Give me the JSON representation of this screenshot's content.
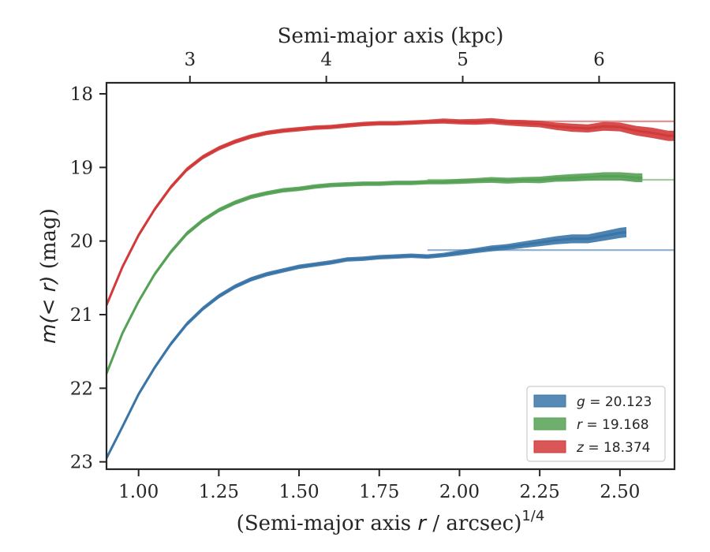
{
  "chart_data": {
    "type": "line",
    "xlabel": "(Semi-major axis r / arcsec)^1/4",
    "xlabel_parts": {
      "prefix": "(Semi-major axis ",
      "var": "r",
      "mid": " / arcsec)",
      "sup": "1/4"
    },
    "ylabel": "m(< r) (mag)",
    "ylabel_parts": {
      "math": "m(< r)",
      "unit": " (mag)"
    },
    "top_xlabel": "Semi-major axis (kpc)",
    "xlim": [
      0.9,
      2.67
    ],
    "ylim": [
      23.1,
      17.85
    ],
    "y_inverted": true,
    "xticks": [
      1.0,
      1.25,
      1.5,
      1.75,
      2.0,
      2.25,
      2.5
    ],
    "xtick_labels": [
      "1.00",
      "1.25",
      "1.50",
      "1.75",
      "2.00",
      "2.25",
      "2.50"
    ],
    "yticks": [
      18,
      19,
      20,
      21,
      22,
      23
    ],
    "ytick_labels": [
      "18",
      "19",
      "20",
      "21",
      "22",
      "23"
    ],
    "top_xticks": [
      3,
      4,
      5,
      6
    ],
    "top_xtick_labels": [
      "3",
      "4",
      "5",
      "6"
    ],
    "top_xtick_positions_bottom_units": [
      1.16,
      1.585,
      2.01,
      2.435
    ],
    "grid": false,
    "legend_position": "lower right",
    "series": [
      {
        "name": "g = 20.123",
        "legend_label": {
          "var": "g",
          "value": "20.123"
        },
        "color": "#3a75a8",
        "asymptote": 20.123,
        "x": [
          0.9,
          0.95,
          1.0,
          1.05,
          1.1,
          1.15,
          1.2,
          1.25,
          1.3,
          1.35,
          1.4,
          1.45,
          1.5,
          1.55,
          1.6,
          1.65,
          1.7,
          1.75,
          1.8,
          1.85,
          1.9,
          1.95,
          2.0,
          2.05,
          2.1,
          2.15,
          2.2,
          2.25,
          2.3,
          2.35,
          2.4,
          2.45,
          2.5,
          2.52
        ],
        "y": [
          22.95,
          22.52,
          22.08,
          21.72,
          21.4,
          21.13,
          20.92,
          20.75,
          20.62,
          20.52,
          20.45,
          20.4,
          20.35,
          20.32,
          20.29,
          20.25,
          20.24,
          20.22,
          20.21,
          20.2,
          20.21,
          20.19,
          20.16,
          20.13,
          20.1,
          20.08,
          20.05,
          20.02,
          19.99,
          19.97,
          19.97,
          19.93,
          19.89,
          19.88
        ],
        "band": [
          0.03,
          0.03,
          0.03,
          0.03,
          0.03,
          0.03,
          0.03,
          0.03,
          0.03,
          0.03,
          0.03,
          0.03,
          0.03,
          0.03,
          0.03,
          0.03,
          0.03,
          0.03,
          0.03,
          0.03,
          0.03,
          0.03,
          0.035,
          0.035,
          0.04,
          0.04,
          0.045,
          0.05,
          0.055,
          0.06,
          0.06,
          0.065,
          0.07,
          0.07
        ]
      },
      {
        "name": "r = 19.168",
        "legend_label": {
          "var": "r",
          "value": "19.168"
        },
        "color": "#55a155",
        "asymptote": 19.168,
        "x": [
          0.9,
          0.95,
          1.0,
          1.05,
          1.1,
          1.15,
          1.2,
          1.25,
          1.3,
          1.35,
          1.4,
          1.45,
          1.5,
          1.55,
          1.6,
          1.65,
          1.7,
          1.75,
          1.8,
          1.85,
          1.9,
          1.95,
          2.0,
          2.05,
          2.1,
          2.15,
          2.2,
          2.25,
          2.3,
          2.35,
          2.4,
          2.45,
          2.5,
          2.55,
          2.57
        ],
        "y": [
          21.8,
          21.25,
          20.82,
          20.45,
          20.15,
          19.9,
          19.72,
          19.58,
          19.48,
          19.4,
          19.35,
          19.31,
          19.29,
          19.26,
          19.24,
          19.23,
          19.22,
          19.22,
          19.21,
          19.21,
          19.2,
          19.2,
          19.19,
          19.18,
          19.17,
          19.18,
          19.17,
          19.17,
          19.15,
          19.14,
          19.13,
          19.12,
          19.12,
          19.14,
          19.14
        ],
        "band": [
          0.03,
          0.03,
          0.03,
          0.03,
          0.03,
          0.03,
          0.03,
          0.03,
          0.03,
          0.03,
          0.03,
          0.03,
          0.03,
          0.03,
          0.03,
          0.03,
          0.03,
          0.03,
          0.03,
          0.03,
          0.03,
          0.03,
          0.035,
          0.035,
          0.04,
          0.04,
          0.04,
          0.045,
          0.045,
          0.05,
          0.05,
          0.055,
          0.055,
          0.06,
          0.06
        ]
      },
      {
        "name": "z = 18.374",
        "legend_label": {
          "var": "z",
          "value": "18.374"
        },
        "color": "#d23a3a",
        "asymptote": 18.374,
        "x": [
          0.9,
          0.95,
          1.0,
          1.05,
          1.1,
          1.15,
          1.2,
          1.25,
          1.3,
          1.35,
          1.4,
          1.45,
          1.5,
          1.55,
          1.6,
          1.65,
          1.7,
          1.75,
          1.8,
          1.85,
          1.9,
          1.95,
          2.0,
          2.05,
          2.1,
          2.15,
          2.2,
          2.25,
          2.3,
          2.35,
          2.4,
          2.45,
          2.5,
          2.55,
          2.6,
          2.65,
          2.67
        ],
        "y": [
          20.87,
          20.35,
          19.92,
          19.57,
          19.27,
          19.03,
          18.86,
          18.74,
          18.65,
          18.58,
          18.53,
          18.5,
          18.48,
          18.46,
          18.45,
          18.43,
          18.41,
          18.4,
          18.4,
          18.39,
          18.38,
          18.37,
          18.38,
          18.38,
          18.37,
          18.39,
          18.4,
          18.41,
          18.44,
          18.46,
          18.47,
          18.44,
          18.45,
          18.5,
          18.53,
          18.57,
          18.57
        ],
        "band": [
          0.03,
          0.03,
          0.03,
          0.03,
          0.03,
          0.03,
          0.03,
          0.03,
          0.03,
          0.03,
          0.03,
          0.03,
          0.03,
          0.03,
          0.03,
          0.03,
          0.03,
          0.03,
          0.03,
          0.03,
          0.03,
          0.035,
          0.035,
          0.04,
          0.04,
          0.04,
          0.045,
          0.045,
          0.05,
          0.055,
          0.055,
          0.06,
          0.06,
          0.065,
          0.07,
          0.07,
          0.07
        ]
      }
    ]
  }
}
